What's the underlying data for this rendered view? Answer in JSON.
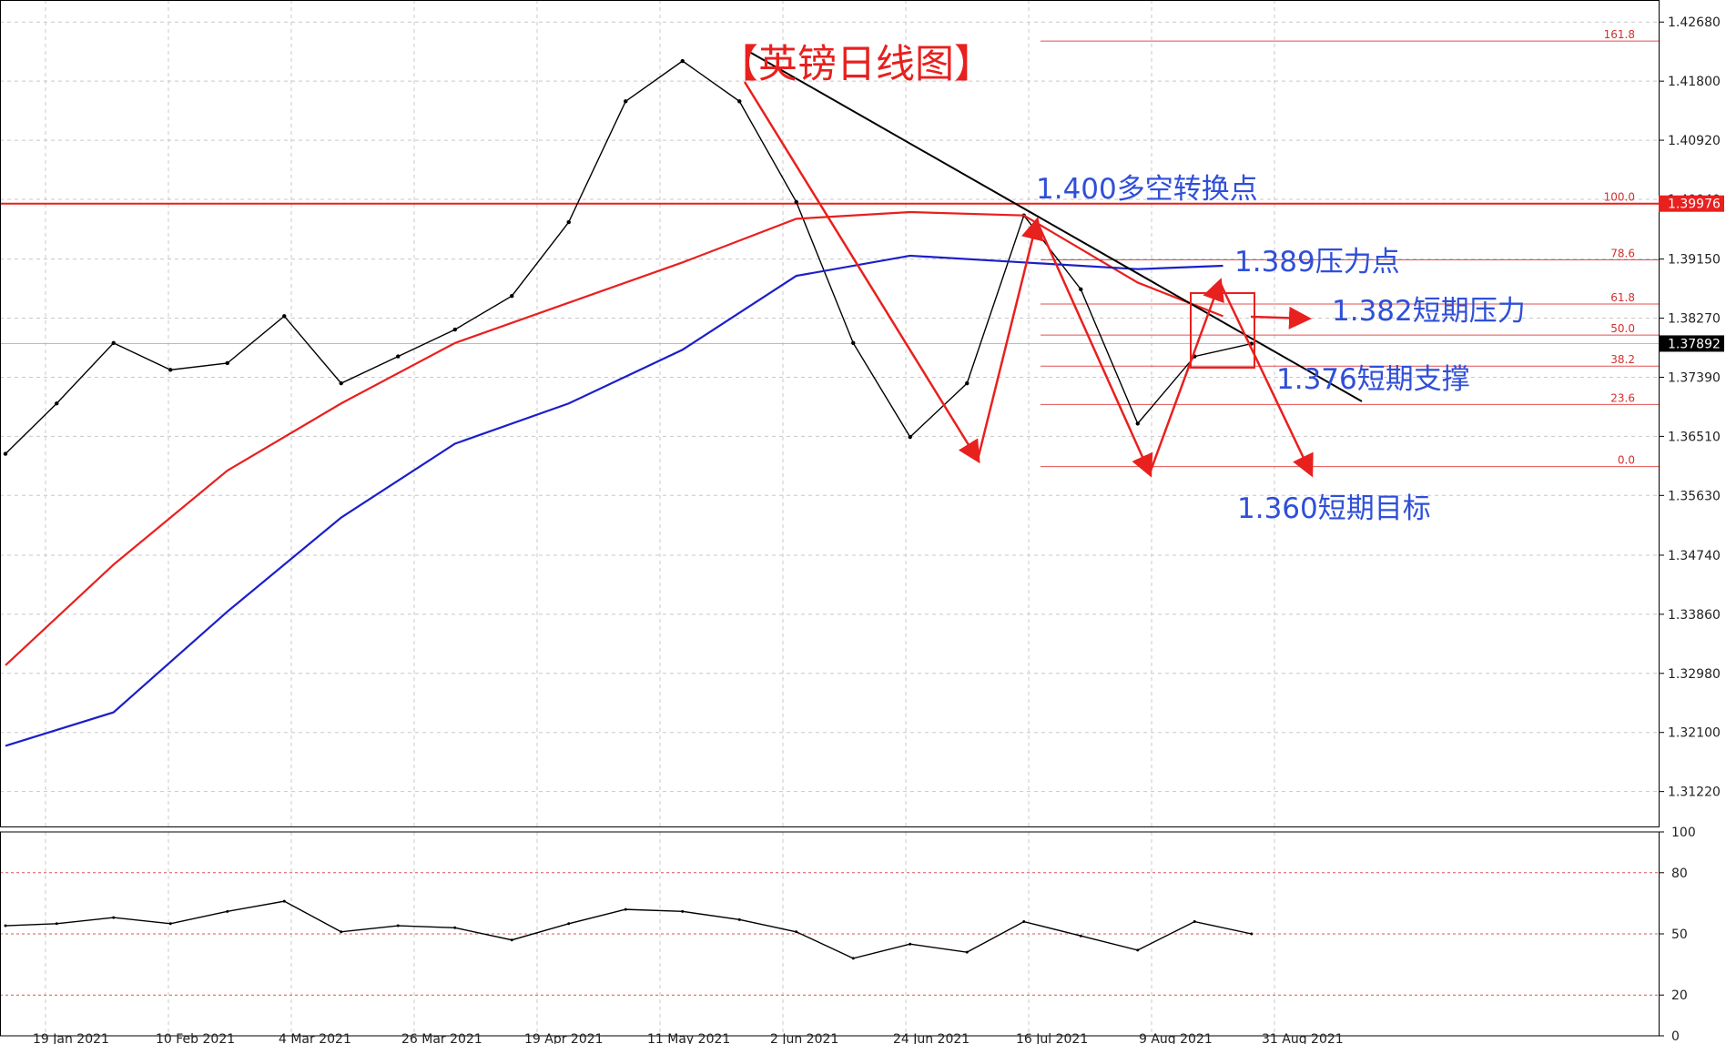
{
  "title": "【英镑日线图】",
  "annotations": {
    "pivot": "1.400多空转换点",
    "resistance": "1.389压力点",
    "short_resistance": "1.382短期压力",
    "short_support": "1.376短期支撑",
    "target": "1.360短期目标"
  },
  "price_axis": {
    "ticks": [
      "1.42680",
      "1.41800",
      "1.40920",
      "1.40040",
      "1.39150",
      "1.38270",
      "1.37390",
      "1.36510",
      "1.35630",
      "1.34740",
      "1.33860",
      "1.32980",
      "1.32100",
      "1.31220"
    ],
    "current_price": "1.37892",
    "ref_price": "1.39976"
  },
  "fib_levels": [
    "161.8",
    "100.0",
    "78.6",
    "61.8",
    "50.0",
    "38.2",
    "23.6",
    "0.0"
  ],
  "date_axis": [
    "19 Jan 2021",
    "10 Feb 2021",
    "4 Mar 2021",
    "26 Mar 2021",
    "19 Apr 2021",
    "11 May 2021",
    "2 Jun 2021",
    "24 Jun 2021",
    "16 Jul 2021",
    "9 Aug 2021",
    "31 Aug 2021"
  ],
  "rsi_axis": [
    "100",
    "80",
    "50",
    "20",
    "0"
  ],
  "colors": {
    "ma_red": "#e8201e",
    "ma_blue": "#1b1fc8",
    "trend": "#000000",
    "fib": "#e25050",
    "annotation_blue": "#2f4fd8",
    "annotation_red": "#e8201e"
  },
  "chart_data": {
    "type": "line",
    "series": [
      {
        "x": [
          1,
          10,
          20,
          30,
          40,
          50,
          60,
          70,
          80,
          90,
          100,
          110,
          120,
          130,
          140,
          150,
          160,
          170,
          180,
          190,
          200,
          210,
          220
        ],
        "values": [
          1.3625,
          1.37,
          1.379,
          1.375,
          1.376,
          1.383,
          1.373,
          1.377,
          1.381,
          1.386,
          1.397,
          1.415,
          1.421,
          1.415,
          1.4,
          1.379,
          1.365,
          1.373,
          1.398,
          1.387,
          1.367,
          1.377,
          1.3789
        ]
      },
      {
        "x": [
          1,
          20,
          40,
          60,
          80,
          100,
          120,
          140,
          160,
          180,
          200,
          215
        ],
        "values": [
          1.331,
          1.346,
          1.36,
          1.37,
          1.379,
          1.385,
          1.391,
          1.3975,
          1.3985,
          1.398,
          1.388,
          1.383
        ]
      },
      {
        "x": [
          1,
          20,
          40,
          60,
          80,
          100,
          120,
          140,
          160,
          180,
          200,
          215
        ],
        "values": [
          1.319,
          1.324,
          1.339,
          1.353,
          1.364,
          1.37,
          1.378,
          1.389,
          1.392,
          1.391,
          1.39,
          1.3905
        ]
      }
    ],
    "ylim": [
      1.307,
      1.429
    ],
    "rsi": {
      "x": [
        1,
        10,
        20,
        30,
        40,
        50,
        60,
        70,
        80,
        90,
        100,
        110,
        120,
        130,
        140,
        150,
        160,
        170,
        180,
        190,
        200,
        210,
        220
      ],
      "values": [
        54,
        55,
        58,
        55,
        61,
        66,
        51,
        54,
        53,
        47,
        55,
        62,
        61,
        57,
        51,
        38,
        45,
        41,
        56,
        49,
        42,
        56,
        50
      ]
    },
    "rsi_levels": [
      80,
      50,
      20
    ]
  }
}
